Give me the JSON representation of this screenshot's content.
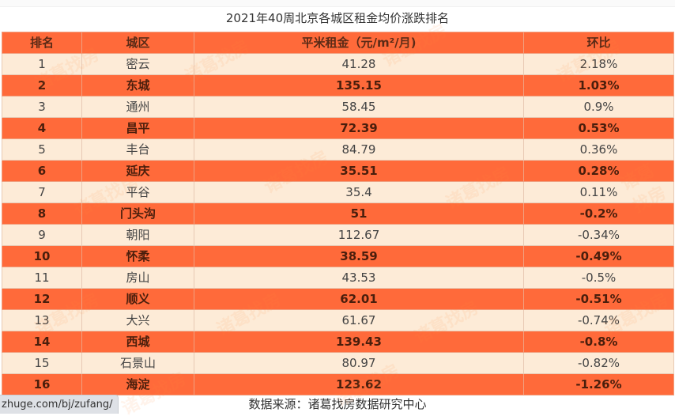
{
  "title": "2021年40周北京各城区租金均价涨跌排名",
  "table": {
    "headers": [
      "排名",
      "城区",
      "平米租金（元/m²/月)",
      "环比"
    ],
    "rows": [
      {
        "rank": "1",
        "district": "密云",
        "rent": "41.28",
        "mom": "2.18%"
      },
      {
        "rank": "2",
        "district": "东城",
        "rent": "135.15",
        "mom": "1.03%"
      },
      {
        "rank": "3",
        "district": "通州",
        "rent": "58.45",
        "mom": "0.9%"
      },
      {
        "rank": "4",
        "district": "昌平",
        "rent": "72.39",
        "mom": "0.53%"
      },
      {
        "rank": "5",
        "district": "丰台",
        "rent": "84.79",
        "mom": "0.36%"
      },
      {
        "rank": "6",
        "district": "延庆",
        "rent": "35.51",
        "mom": "0.28%"
      },
      {
        "rank": "7",
        "district": "平谷",
        "rent": "35.4",
        "mom": "0.11%"
      },
      {
        "rank": "8",
        "district": "门头沟",
        "rent": "51",
        "mom": "-0.2%"
      },
      {
        "rank": "9",
        "district": "朝阳",
        "rent": "112.67",
        "mom": "-0.34%"
      },
      {
        "rank": "10",
        "district": "怀柔",
        "rent": "38.59",
        "mom": "-0.49%"
      },
      {
        "rank": "11",
        "district": "房山",
        "rent": "43.53",
        "mom": "-0.5%"
      },
      {
        "rank": "12",
        "district": "顺义",
        "rent": "62.01",
        "mom": "-0.51%"
      },
      {
        "rank": "13",
        "district": "大兴",
        "rent": "61.67",
        "mom": "-0.74%"
      },
      {
        "rank": "14",
        "district": "西城",
        "rent": "139.43",
        "mom": "-0.8%"
      },
      {
        "rank": "15",
        "district": "石景山",
        "rent": "80.97",
        "mom": "-0.82%"
      },
      {
        "rank": "16",
        "district": "海淀",
        "rent": "123.62",
        "mom": "-1.26%"
      }
    ]
  },
  "footer": {
    "source": "数据来源：诸葛找房数据研究中心",
    "status_url": "zhuge.com/bj/zufang/"
  },
  "watermark": "诸葛找房",
  "colors": {
    "header_bg": "#ff6a3a",
    "highlight_row_bg": "#ff6a3a",
    "plain_row_bg": "#fdebd7"
  },
  "chart_data": {
    "type": "table",
    "title": "2021年40周北京各城区租金均价涨跌排名",
    "columns": [
      "排名",
      "城区",
      "平米租金（元/m²/月)",
      "环比"
    ],
    "rows": [
      [
        1,
        "密云",
        41.28,
        "2.18%"
      ],
      [
        2,
        "东城",
        135.15,
        "1.03%"
      ],
      [
        3,
        "通州",
        58.45,
        "0.9%"
      ],
      [
        4,
        "昌平",
        72.39,
        "0.53%"
      ],
      [
        5,
        "丰台",
        84.79,
        "0.36%"
      ],
      [
        6,
        "延庆",
        35.51,
        "0.28%"
      ],
      [
        7,
        "平谷",
        35.4,
        "0.11%"
      ],
      [
        8,
        "门头沟",
        51,
        "-0.2%"
      ],
      [
        9,
        "朝阳",
        112.67,
        "-0.34%"
      ],
      [
        10,
        "怀柔",
        38.59,
        "-0.49%"
      ],
      [
        11,
        "房山",
        43.53,
        "-0.5%"
      ],
      [
        12,
        "顺义",
        62.01,
        "-0.51%"
      ],
      [
        13,
        "大兴",
        61.67,
        "-0.74%"
      ],
      [
        14,
        "西城",
        139.43,
        "-0.8%"
      ],
      [
        15,
        "石景山",
        80.97,
        "-0.82%"
      ],
      [
        16,
        "海淀",
        123.62,
        "-1.26%"
      ]
    ],
    "source": "数据来源：诸葛找房数据研究中心"
  }
}
